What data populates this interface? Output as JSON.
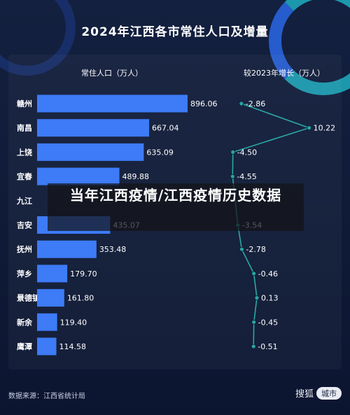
{
  "overlay": {
    "headline": "当年江西疫情/江西疫情历史数据"
  },
  "footer": {
    "source": "数据来源：江西省统计局",
    "brand_name": "搜狐",
    "brand_tag": "城市"
  },
  "colors": {
    "bar": "#3d7bf7",
    "line": "#2aa9a3",
    "marker": "#28a59f",
    "text": "#ffffff"
  },
  "chart_data": {
    "type": "bar",
    "title": "2024年江西各市常住人口及增量",
    "categories": [
      "赣州",
      "南昌",
      "上饶",
      "宜春",
      "九江",
      "吉安",
      "抚州",
      "萍乡",
      "景德镇",
      "新余",
      "鹰潭"
    ],
    "series": [
      {
        "name": "常住人口（万人）",
        "type": "bar",
        "values": [
          896.06,
          667.04,
          635.09,
          489.88,
          null,
          435.07,
          353.48,
          179.7,
          161.8,
          119.4,
          114.58
        ],
        "labels": [
          "896.06",
          "667.04",
          "635.09",
          "489.88",
          "",
          "435.07",
          "353.48",
          "179.70",
          "161.80",
          "119.40",
          "114.58"
        ]
      },
      {
        "name": "较2023年增长（万人）",
        "type": "line",
        "values": [
          -2.86,
          10.22,
          -4.5,
          -4.55,
          null,
          -3.54,
          -2.78,
          -0.46,
          0.13,
          -0.45,
          -0.51
        ],
        "labels": [
          "-2.86",
          "10.22",
          "-4.50",
          "-4.55",
          "",
          "-3.54",
          "-2.78",
          "-0.46",
          "0.13",
          "-0.45",
          "-0.51"
        ]
      }
    ],
    "legend": "top",
    "grid": false
  }
}
